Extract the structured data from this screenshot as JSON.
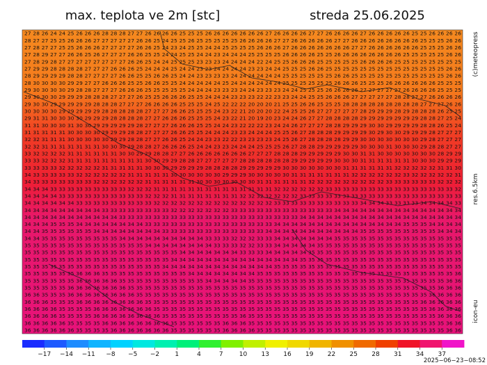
{
  "header": {
    "title": "max. teplota ve 2m [stc]",
    "date": "streda 25.06.2025"
  },
  "side_labels": {
    "copyright": "(c)meteopress",
    "resolution": "res.6.5km",
    "model": "icon-eu"
  },
  "timestamp": "2025−06−23−08:52",
  "grid_rows": [
    "27 28 26 24 24 25 26 26 26 28 28 28 27 27 26 26 26 26 25 25 25 26 26 26 26 26 26 26 27 26 26 26 26 27 27 26 26 26 26 27 26 26 26 26 26 25 25 26 26 26 26",
    "28 27 27 25 25 26 26 26 27 27 27 27 27 26 26 25 24 25 25 26 25 25 25 25 25 26 26 26 26 27 27 26 26 26 26 26 27 27 26 26 26 26 26 26 26 26 25 25 25 26 26",
    "27 28 27 27 25 25 26 26 26 27 27 27 27 26 26 25 24 23 24 25 25 24 24 25 25 25 25 26 26 26 27 26 26 26 26 26 26 26 27 27 26 26 26 26 26 26 25 25 25 26 26",
    "27 28 29 27 27 26 26 25 26 27 27 27 26 26 25 25 24 24 25 25 24 24 23 24 24 24 25 25 25 25 26 26 26 26 25 25 26 26 26 26 26 26 26 26 25 25 25 25 25 26 26",
    "27 28 29 28 27 27 27 27 27 27 27 27 26 26 25 24 24 25 25 25 23 23 23 24 24 24 24 22 24 25 25 26 26 26 25 25 25 25 25 26 26 26 26 25 25 25 25 25 25 25 25",
    "27 29 29 28 28 28 28 27 27 27 26 26 26 25 24 24 24 25 24 24 23 23 24 24 24 24 23 23 24 24 25 25 25 26 26 25 25 25 25 25 25 25 25 25 25 25 25 25 25 26 26",
    "28 29 29 29 29 28 28 27 27 27 27 26 26 25 25 26 26 25 24 24 23 23 23 23 24 24 24 24 24 24 25 25 25 25 25 25 26 26 25 25 25 25 25 25 25 25 25 25 25 26 26",
    "28 30 30 30 30 29 29 27 27 26 26 26 25 25 26 26 25 25 24 24 24 24 24 25 24 24 24 24 24 24 25 25 25 25 25 25 26 26 26 25 25 25 26 26 26 26 26 26 25 25 25",
    "29 30 30 30 30 29 28 28 27 27 27 26 26 26 25 25 25 25 25 24 24 24 23 23 23 24 24 23 23 23 24 24 25 25 25 26 26 26 26 27 27 27 27 27 26 26 26 26 25 25 25",
    "29 30 30 30 29 29 29 28 28 28 27 27 27 26 25 25 26 26 26 25 25 24 24 24 23 23 23 22 22 23 23 24 24 25 25 26 26 26 27 27 27 27 27 28 28 27 27 26 26 26 26",
    "29 30 30 29 29 29 29 29 28 28 28 27 27 27 26 26 26 26 25 25 25 24 25 22 22 22 20 20 20 21 25 25 26 26 25 25 25 28 28 28 28 28 28 28 28 28 27 27 27 26 26",
    "30 30 30 30 29 29 29 29 29 28 28 28 28 28 27 27 27 26 26 25 25 25 24 23 22 21 20 20 20 22 24 25 25 26 27 27 27 27 27 28 29 29 29 28 29 28 28 28 26 25 25",
    "29 31 31 30 30 30 30 29 29 29 28 28 28 28 27 27 26 26 26 25 25 25 24 23 22 21 20 19 20 23 24 24 26 27 27 28 28 28 28 29 29 29 29 29 29 29 28 28 27 25 24",
    "31 31 30 30 30 31 30 30 29 29 29 29 29 28 27 27 27 26 26 26 25 25 24 24 23 22 22 22 23 24 24 26 27 27 27 28 28 29 29 29 30 30 29 29 29 29 28 28 26 25 24",
    "31 31 31 31 31 30 30 30 30 29 29 29 28 28 27 27 27 26 26 25 25 24 24 24 23 23 24 24 24 25 25 26 27 28 28 28 29 29 29 29 30 29 30 30 29 29 29 28 27 27 27",
    "32 32 31 31 31 30 30 30 30 30 29 29 28 28 27 27 26 26 25 24 24 23 23 22 22 23 23 23 23 24 25 26 27 28 28 28 28 29 29 30 30 30 30 30 30 30 29 28 27 27 27",
    "32 32 31 31 31 31 31 31 31 30 30 30 29 28 28 27 26 26 26 25 24 24 23 23 24 24 24 25 25 25 26 27 28 28 29 29 29 29 29 30 30 30 31 30 30 30 29 28 28 27 27",
    "33 32 32 32 32 31 31 31 31 31 31 30 30 29 29 28 28 27 27 26 26 26 26 26 26 26 27 27 27 28 28 28 29 29 29 29 29 30 30 31 31 30 30 30 30 30 30 30 28 29 29",
    "33 33 32 32 32 31 31 31 31 31 31 31 31 31 30 30 29 29 28 28 27 27 27 27 27 28 28 28 28 28 28 29 29 29 29 29 30 30 30 31 31 31 31 31 31 30 30 30 29 29 29",
    "33 33 33 33 32 32 32 32 32 31 31 31 31 31 30 30 30 29 29 29 29 28 28 28 28 29 29 29 29 29 30 30 30 30 30 30 30 31 31 31 31 31 31 32 32 32 32 32 31 31 30",
    "34 33 33 33 33 33 32 32 32 32 32 32 31 31 31 31 31 30 30 30 30 30 30 29 29 29 30 30 30 30 30 31 31 31 31 31 31 31 32 32 32 32 32 32 33 32 32 32 32 32 31",
    "34 33 33 33 33 33 33 33 32 32 32 32 32 32 31 31 31 31 31 31 30 30 30 30 30 30 30 31 31 31 31 31 31 32 32 32 32 32 32 32 32 32 33 33 33 33 33 33 32 32 32",
    "34 34 34 33 33 33 33 33 33 33 33 33 32 32 32 31 31 31 31 31 31 31 31 31 31 31 31 31 31 32 32 32 32 32 32 33 33 33 33 33 33 33 33 33 33 33 33 33 33 33 32",
    "34 34 34 34 33 33 33 33 33 33 33 33 33 33 32 32 32 31 31 31 31 31 31 31 31 32 32 32 32 32 32 32 33 33 33 33 33 33 33 33 33 33 33 33 33 33 33 33 33 33 33",
    "34 34 34 34 34 34 33 33 33 33 33 33 33 33 33 32 32 32 32 32 32 32 32 32 32 32 32 32 32 33 33 33 33 33 33 33 33 33 33 34 34 34 33 33 33 33 34 34 34 34 33",
    "34 34 34 34 34 34 34 34 34 33 33 33 33 33 33 33 33 32 32 32 32 32 32 32 33 33 33 33 33 33 33 33 33 33 33 33 34 34 34 34 34 34 34 34 34 34 34 34 34 34 34",
    "34 34 34 34 34 34 34 34 34 34 34 33 33 33 33 33 33 33 33 33 33 33 33 33 33 33 33 33 33 33 33 33 34 34 34 34 34 34 34 34 34 34 34 34 34 34 34 34 34 34 34",
    "34 34 34 35 35 35 34 34 34 34 34 34 34 34 33 33 33 33 33 33 33 33 33 33 33 33 33 33 33 34 34 34 34 34 34 34 34 34 34 34 34 34 34 34 35 35 35 34 34 34 34",
    "34 34 35 35 35 35 35 35 34 34 34 34 34 34 34 34 33 33 33 33 33 33 33 33 33 33 33 33 34 34 34 34 34 34 34 34 34 34 34 35 35 35 35 35 35 35 35 35 34 34 34",
    "34 34 35 35 35 35 35 35 35 35 35 34 34 34 34 34 34 34 34 34 34 33 33 33 32 32 32 33 33 34 34 34 34 34 34 34 35 35 35 35 35 35 35 35 35 35 35 35 35 35 35",
    "35 35 35 35 35 35 35 35 35 35 35 35 35 35 34 34 34 34 34 34 34 34 33 33 33 32 32 33 33 34 34 34 34 34 35 35 35 35 35 35 35 35 35 35 35 35 35 35 35 35 35",
    "35 35 35 35 35 35 35 35 35 35 35 35 35 35 35 35 35 35 34 34 34 34 34 34 34 33 33 33 34 34 34 34 34 35 35 35 35 35 35 35 35 35 35 35 35 35 35 35 35 35 35",
    "35 35 35 35 35 35 35 35 35 35 35 35 35 35 35 35 35 34 34 34 34 34 34 34 34 34 34 34 34 34 34 34 35 35 35 35 35 35 35 35 35 35 35 35 35 35 35 35 35 35 35",
    "35 35 35 35 35 35 35 35 35 35 35 35 35 35 35 35 34 34 34 34 34 34 34 34 34 34 34 34 34 35 35 35 35 35 35 35 35 35 35 35 35 35 35 35 35 35 35 35 35 35 35",
    "35 35 35 35 35 35 36 36 36 35 35 35 35 35 35 35 35 35 35 34 34 34 34 34 34 34 34 35 35 35 35 35 35 35 35 35 35 35 35 35 35 35 35 35 35 35 35 35 35 35 36",
    "35 35 35 35 35 35 36 36 36 36 36 35 35 35 35 35 35 35 35 35 35 34 34 34 34 34 35 35 35 35 35 35 35 35 35 35 35 35 35 35 35 35 35 35 35 35 35 35 35 36 36",
    "35 35 35 35 35 36 36 36 36 36 36 36 35 35 35 35 35 35 35 35 35 35 35 35 35 35 35 35 35 35 35 35 35 35 35 35 35 35 35 35 35 35 35 35 35 35 35 35 36 36 36",
    "36 36 35 35 35 36 36 36 36 36 36 36 36 35 35 35 35 35 35 35 35 35 35 35 35 35 35 35 35 35 35 35 35 35 35 35 35 35 35 35 35 35 35 35 35 35 35 36 36 36 36",
    "36 36 36 35 35 35 36 36 36 36 36 36 36 36 35 35 35 35 35 35 35 35 35 35 35 35 35 35 35 35 35 35 35 35 35 35 35 35 35 35 35 35 35 35 35 35 36 36 36 36 36",
    "36 36 36 36 35 35 35 35 36 36 36 36 36 36 36 35 35 35 35 35 35 35 35 35 35 35 35 35 35 35 35 35 35 35 35 35 35 35 35 35 35 35 35 35 35 35 35 36 36 36 36",
    "36 36 36 36 35 35 35 35 36 36 36 36 36 36 36 36 35 35 35 35 35 35 35 35 35 36 35 35 35 35 35 35 35 35 35 35 35 35 35 35 35 35 35 35 35 35 35 35 36 36 36",
    "36 36 36 36 36 35 35 35 35 36 36 36 36 36 36 36 36 35 35 35 35 35 35 36 36 36 35 35 35 35 35 35 35 35 35 35 35 35 35 35 35 35 35 35 35 35 35 35 35 36 36",
    "36 36 36 36 36 36 35 35 35 35 36 36 36 36 36 36 36 35 35 35 35 35 35 36 36 36 36 35 35 35 35 35 35 35 35 35 35 35 35 35 35 35 35 35 35 35 35 35 35 36 36"
  ],
  "colorbar": {
    "range": [
      -20,
      40
    ],
    "colors": [
      "#1a2cff",
      "#1e5aff",
      "#1e8cff",
      "#10b4ff",
      "#00d2ff",
      "#00e8e0",
      "#00f0b0",
      "#00f07a",
      "#30f030",
      "#80f000",
      "#c0f000",
      "#f0f000",
      "#f0d800",
      "#f0b400",
      "#f09000",
      "#f06a00",
      "#f04000",
      "#f01428",
      "#f0146e",
      "#f014c8"
    ],
    "ticks": [
      {
        "value": -17,
        "label": "−17"
      },
      {
        "value": -14,
        "label": "−14"
      },
      {
        "value": -11,
        "label": "−11"
      },
      {
        "value": -8,
        "label": "−8"
      },
      {
        "value": -5,
        "label": "−5"
      },
      {
        "value": -2,
        "label": "−2"
      },
      1,
      4,
      7,
      10,
      13,
      16,
      19,
      22,
      25,
      28,
      31,
      34,
      37
    ]
  }
}
